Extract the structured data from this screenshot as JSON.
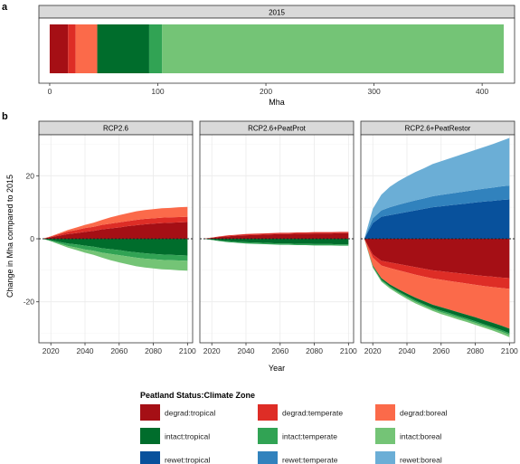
{
  "panel_labels": {
    "a": "a",
    "b": "b"
  },
  "chart_data": [
    {
      "type": "bar",
      "orientation": "horizontal",
      "stacked": true,
      "strip_title": "2015",
      "xlabel": "Mha",
      "xlim": [
        -10,
        430
      ],
      "xticks": [
        0,
        100,
        200,
        300,
        400
      ],
      "segments": [
        {
          "key": "degrad:tropical",
          "value": 17
        },
        {
          "key": "degrad:temperate",
          "value": 7
        },
        {
          "key": "degrad:boreal",
          "value": 20
        },
        {
          "key": "intact:tropical",
          "value": 48
        },
        {
          "key": "intact:temperate",
          "value": 12
        },
        {
          "key": "intact:boreal",
          "value": 316
        }
      ]
    },
    {
      "type": "area",
      "stacked": true,
      "xlabel": "Year",
      "ylabel": "Change in Mha compared to 2015",
      "xlim": [
        2013,
        2103
      ],
      "ylim": [
        -33,
        33
      ],
      "xticks": [
        2020,
        2040,
        2060,
        2080,
        2100
      ],
      "yticks": [
        -20,
        0,
        20
      ],
      "x": [
        2015,
        2020,
        2025,
        2030,
        2035,
        2040,
        2045,
        2050,
        2055,
        2060,
        2065,
        2070,
        2075,
        2080,
        2085,
        2090,
        2095,
        2100
      ],
      "legend": {
        "title": "Peatland Status:Climate Zone",
        "position": "bottom",
        "entries": [
          {
            "key": "degrad:tropical",
            "label": "degrad:tropical"
          },
          {
            "key": "degrad:temperate",
            "label": "degrad:temperate"
          },
          {
            "key": "degrad:boreal",
            "label": "degrad:boreal"
          },
          {
            "key": "intact:tropical",
            "label": "intact:tropical"
          },
          {
            "key": "intact:temperate",
            "label": "intact:temperate"
          },
          {
            "key": "intact:boreal",
            "label": "intact:boreal"
          },
          {
            "key": "rewet:tropical",
            "label": "rewet:tropical"
          },
          {
            "key": "rewet:temperate",
            "label": "rewet:temperate"
          },
          {
            "key": "rewet:boreal",
            "label": "rewet:boreal"
          }
        ]
      },
      "facets": [
        {
          "title": "RCP2.6",
          "positive": [
            {
              "key": "degrad:tropical",
              "values": [
                0,
                0.5,
                1.0,
                1.5,
                1.8,
                2.2,
                2.5,
                3.0,
                3.3,
                3.6,
                4.0,
                4.3,
                4.6,
                4.8,
                5.0,
                5.1,
                5.2,
                5.3
              ]
            },
            {
              "key": "degrad:temperate",
              "values": [
                0,
                0.2,
                0.5,
                0.8,
                1.0,
                1.2,
                1.3,
                1.4,
                1.5,
                1.6,
                1.6,
                1.7,
                1.7,
                1.7,
                1.7,
                1.7,
                1.7,
                1.7
              ]
            },
            {
              "key": "degrad:boreal",
              "values": [
                0,
                0.1,
                0.3,
                0.5,
                0.8,
                1.0,
                1.3,
                1.6,
                2.0,
                2.3,
                2.5,
                2.7,
                2.8,
                2.9,
                3.0,
                3.0,
                3.1,
                3.1
              ]
            }
          ],
          "negative": [
            {
              "key": "intact:tropical",
              "values": [
                0,
                -0.5,
                -1.0,
                -1.5,
                -1.8,
                -2.2,
                -2.5,
                -3.0,
                -3.3,
                -3.6,
                -4.0,
                -4.3,
                -4.6,
                -4.8,
                -5.0,
                -5.1,
                -5.2,
                -5.3
              ]
            },
            {
              "key": "intact:temperate",
              "values": [
                0,
                -0.2,
                -0.5,
                -0.8,
                -1.0,
                -1.2,
                -1.3,
                -1.4,
                -1.5,
                -1.6,
                -1.6,
                -1.7,
                -1.7,
                -1.7,
                -1.7,
                -1.7,
                -1.7,
                -1.7
              ]
            },
            {
              "key": "intact:boreal",
              "values": [
                0,
                -0.1,
                -0.3,
                -0.5,
                -0.8,
                -1.0,
                -1.3,
                -1.6,
                -2.0,
                -2.3,
                -2.5,
                -2.7,
                -2.8,
                -2.9,
                -3.0,
                -3.0,
                -3.1,
                -3.1
              ]
            }
          ]
        },
        {
          "title": "RCP2.6+PeatProt",
          "positive": [
            {
              "key": "degrad:tropical",
              "values": [
                0,
                0.3,
                0.6,
                0.8,
                1.0,
                1.1,
                1.2,
                1.3,
                1.4,
                1.5,
                1.5,
                1.6,
                1.6,
                1.7,
                1.7,
                1.7,
                1.8,
                1.8
              ]
            },
            {
              "key": "degrad:temperate",
              "values": [
                0,
                0.1,
                0.2,
                0.3,
                0.3,
                0.4,
                0.4,
                0.4,
                0.4,
                0.4,
                0.4,
                0.4,
                0.4,
                0.4,
                0.4,
                0.4,
                0.4,
                0.4
              ]
            },
            {
              "key": "degrad:boreal",
              "values": [
                0,
                0,
                0,
                0,
                0,
                0,
                0,
                0,
                0,
                0,
                0,
                0,
                0,
                0,
                0,
                0,
                0,
                0
              ]
            }
          ],
          "negative": [
            {
              "key": "intact:tropical",
              "values": [
                0,
                -0.3,
                -0.6,
                -0.8,
                -1.0,
                -1.1,
                -1.2,
                -1.3,
                -1.4,
                -1.5,
                -1.5,
                -1.6,
                -1.6,
                -1.7,
                -1.7,
                -1.7,
                -1.8,
                -1.8
              ]
            },
            {
              "key": "intact:temperate",
              "values": [
                0,
                -0.1,
                -0.2,
                -0.3,
                -0.3,
                -0.4,
                -0.4,
                -0.4,
                -0.4,
                -0.4,
                -0.4,
                -0.4,
                -0.4,
                -0.4,
                -0.4,
                -0.4,
                -0.4,
                -0.4
              ]
            },
            {
              "key": "intact:boreal",
              "values": [
                0,
                0,
                0,
                0,
                0,
                0,
                0,
                0,
                0,
                0,
                0,
                0,
                0,
                0,
                0,
                0,
                0,
                0
              ]
            }
          ]
        },
        {
          "title": "RCP2.6+PeatRestor",
          "positive": [
            {
              "key": "rewet:tropical",
              "values": [
                0,
                5.0,
                7.0,
                7.5,
                8.0,
                8.5,
                9.0,
                9.5,
                10.0,
                10.3,
                10.6,
                10.9,
                11.2,
                11.5,
                11.8,
                12.0,
                12.3,
                12.5
              ]
            },
            {
              "key": "rewet:temperate",
              "values": [
                0,
                1.5,
                2.0,
                2.5,
                2.8,
                3.0,
                3.2,
                3.3,
                3.5,
                3.6,
                3.7,
                3.8,
                3.9,
                4.0,
                4.1,
                4.2,
                4.3,
                4.4
              ]
            },
            {
              "key": "rewet:boreal",
              "values": [
                0,
                3.0,
                5.0,
                6.5,
                7.5,
                8.3,
                9.0,
                9.6,
                10.2,
                10.7,
                11.2,
                11.7,
                12.2,
                12.7,
                13.2,
                13.8,
                14.4,
                15.1
              ]
            }
          ],
          "negative": [
            {
              "key": "degrad:tropical",
              "values": [
                0,
                -5.0,
                -7.0,
                -7.5,
                -8.0,
                -8.5,
                -9.0,
                -9.5,
                -10.0,
                -10.3,
                -10.6,
                -10.9,
                -11.2,
                -11.5,
                -11.8,
                -12.0,
                -12.3,
                -12.5
              ]
            },
            {
              "key": "degrad:temperate",
              "values": [
                0,
                -1.0,
                -1.5,
                -1.8,
                -2.0,
                -2.2,
                -2.4,
                -2.5,
                -2.6,
                -2.7,
                -2.8,
                -2.9,
                -3.0,
                -3.1,
                -3.2,
                -3.3,
                -3.3,
                -3.4
              ]
            },
            {
              "key": "degrad:boreal",
              "values": [
                0,
                -2.5,
                -4.0,
                -5.2,
                -6.0,
                -6.7,
                -7.3,
                -7.8,
                -8.3,
                -8.7,
                -9.1,
                -9.5,
                -9.9,
                -10.3,
                -10.8,
                -11.3,
                -11.9,
                -12.6
              ]
            },
            {
              "key": "intact:tropical",
              "values": [
                0,
                -0.3,
                -0.5,
                -0.6,
                -0.7,
                -0.8,
                -0.9,
                -1.0,
                -1.0,
                -1.1,
                -1.1,
                -1.2,
                -1.2,
                -1.3,
                -1.3,
                -1.4,
                -1.4,
                -1.5
              ]
            },
            {
              "key": "intact:temperate",
              "values": [
                0,
                -0.2,
                -0.3,
                -0.3,
                -0.4,
                -0.4,
                -0.4,
                -0.4,
                -0.5,
                -0.5,
                -0.5,
                -0.5,
                -0.5,
                -0.5,
                -0.5,
                -0.5,
                -0.5,
                -0.5
              ]
            },
            {
              "key": "intact:boreal",
              "values": [
                0,
                -0.2,
                -0.3,
                -0.4,
                -0.4,
                -0.5,
                -0.5,
                -0.5,
                -0.5,
                -0.6,
                -0.6,
                -0.6,
                -0.6,
                -0.6,
                -0.6,
                -0.6,
                -0.7,
                -0.7
              ]
            }
          ]
        }
      ]
    }
  ],
  "colors": {
    "degrad:tropical": "#a50f15",
    "degrad:temperate": "#de2d26",
    "degrad:boreal": "#fb6a4a",
    "intact:tropical": "#006d2c",
    "intact:temperate": "#31a354",
    "intact:boreal": "#74c476",
    "rewet:tropical": "#08519c",
    "rewet:temperate": "#3182bd",
    "rewet:boreal": "#6baed6",
    "strip_bg": "#d9d9d9",
    "panel_border": "#333333",
    "grid": "#ebebeb"
  }
}
